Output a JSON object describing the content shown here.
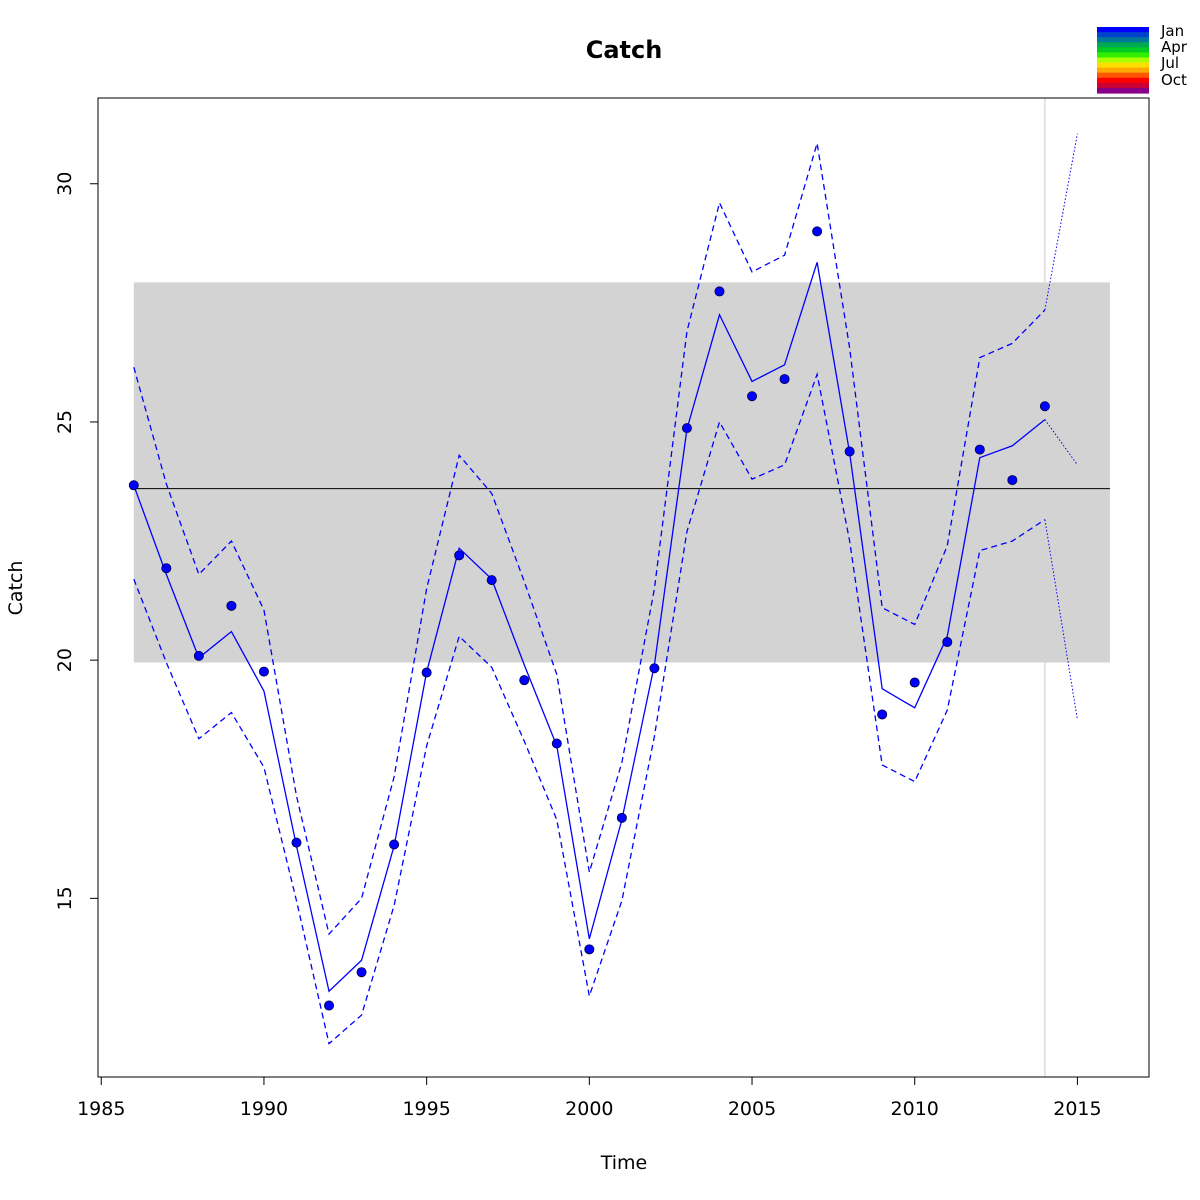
{
  "chart_data": {
    "type": "line",
    "title": "Catch",
    "xlabel": "Time",
    "ylabel": "Catch",
    "xlim": [
      1984.9,
      2017.2
    ],
    "ylim": [
      11.25,
      31.8
    ],
    "x_ticks": [
      1985,
      1990,
      1995,
      2000,
      2005,
      2010,
      2015
    ],
    "y_ticks": [
      15,
      20,
      25,
      30
    ],
    "grid": false,
    "reference_band": {
      "low": 19.95,
      "high": 27.93,
      "color": "#d3d3d3",
      "x_range": [
        1986,
        2016
      ]
    },
    "mean_line": {
      "value": 23.6,
      "color": "#000000",
      "x_range": [
        1986,
        2016
      ]
    },
    "forecast_start": 2014,
    "forecast_line_color": "#d3d3d3",
    "series": [
      {
        "role": "observed",
        "x": [
          1986,
          1987,
          1988,
          1989,
          1990,
          1991,
          1992,
          1993,
          1994,
          1995,
          1996,
          1997,
          1998,
          1999,
          2000,
          2001,
          2002,
          2003,
          2004,
          2005,
          2006,
          2007,
          2008,
          2009,
          2010,
          2011,
          2012,
          2013,
          2014
        ],
        "values": [
          23.67,
          21.93,
          20.09,
          21.14,
          19.76,
          16.17,
          12.75,
          13.45,
          16.13,
          19.74,
          22.2,
          21.68,
          19.58,
          18.25,
          13.93,
          16.69,
          19.83,
          24.87,
          27.74,
          25.54,
          25.9,
          29.0,
          24.38,
          18.86,
          19.53,
          20.38,
          24.42,
          23.78,
          25.33
        ]
      },
      {
        "role": "fitted",
        "x": [
          1986,
          1987,
          1988,
          1989,
          1990,
          1991,
          1992,
          1993,
          1994,
          1995,
          1996,
          1997,
          1998,
          1999,
          2000,
          2001,
          2002,
          2003,
          2004,
          2005,
          2006,
          2007,
          2008,
          2009,
          2010,
          2011,
          2012,
          2013,
          2014
        ],
        "values": [
          23.67,
          21.8,
          20.05,
          20.6,
          19.35,
          16.1,
          13.05,
          13.7,
          16.1,
          19.75,
          22.35,
          21.7,
          19.9,
          18.2,
          14.15,
          16.65,
          19.9,
          24.85,
          27.25,
          25.85,
          26.2,
          28.35,
          24.35,
          19.4,
          19.0,
          20.5,
          24.25,
          24.5,
          25.05
        ]
      },
      {
        "role": "upper",
        "x": [
          1986,
          1987,
          1988,
          1989,
          1990,
          1991,
          1992,
          1993,
          1994,
          1995,
          1996,
          1997,
          1998,
          1999,
          2000,
          2001,
          2002,
          2003,
          2004,
          2005,
          2006,
          2007,
          2008,
          2009,
          2010,
          2011,
          2012,
          2013,
          2014
        ],
        "values": [
          26.15,
          23.7,
          21.8,
          22.5,
          21.05,
          17.15,
          14.25,
          15.0,
          17.55,
          21.5,
          24.3,
          23.5,
          21.65,
          19.7,
          15.55,
          17.85,
          21.5,
          26.9,
          29.6,
          28.15,
          28.5,
          30.85,
          26.55,
          21.1,
          20.75,
          22.4,
          26.35,
          26.65,
          27.35
        ]
      },
      {
        "role": "lower",
        "x": [
          1986,
          1987,
          1988,
          1989,
          1990,
          1991,
          1992,
          1993,
          1994,
          1995,
          1996,
          1997,
          1998,
          1999,
          2000,
          2001,
          2002,
          2003,
          2004,
          2005,
          2006,
          2007,
          2008,
          2009,
          2010,
          2011,
          2012,
          2013,
          2014
        ],
        "values": [
          21.7,
          19.95,
          18.35,
          18.9,
          17.75,
          14.95,
          11.95,
          12.55,
          14.85,
          18.2,
          20.5,
          19.85,
          18.3,
          16.65,
          12.95,
          14.95,
          18.4,
          22.7,
          25.0,
          23.8,
          24.1,
          26.0,
          22.5,
          17.8,
          17.45,
          18.95,
          22.3,
          22.5,
          22.95
        ]
      },
      {
        "role": "forecast",
        "x": [
          2014,
          2015
        ],
        "values": [
          25.05,
          24.1
        ]
      },
      {
        "role": "forecast-upper",
        "x": [
          2014,
          2015
        ],
        "values": [
          27.35,
          31.05
        ]
      },
      {
        "role": "forecast-lower",
        "x": [
          2014,
          2015
        ],
        "values": [
          22.95,
          18.75
        ]
      }
    ],
    "series_color": "#0000ff",
    "legend": {
      "placement": "top-right",
      "entries": [
        "Jan",
        "Apr",
        "Jul",
        "Oct"
      ],
      "colors": [
        "#0000ff",
        "#0044cc",
        "#007799",
        "#00aa55",
        "#00cc22",
        "#33ee00",
        "#aaff00",
        "#ffdd00",
        "#ffaa00",
        "#ff5500",
        "#ff0000",
        "#cc0033",
        "#880088"
      ]
    }
  }
}
